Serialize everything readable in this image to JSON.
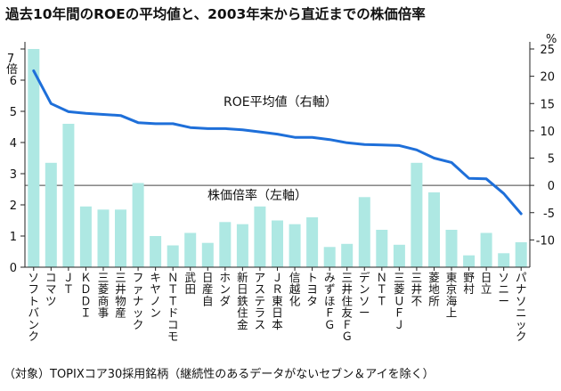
{
  "chart_data": {
    "type": "bar+line",
    "title": "過去10年間のROEの平均値と、2003年末から直近までの株価倍率",
    "left_axis": {
      "unit_label": "倍",
      "ylim": [
        0,
        7
      ],
      "ticks": [
        0,
        1,
        2,
        3,
        4,
        5,
        6,
        7
      ]
    },
    "right_axis": {
      "unit_label": "%",
      "ylim": [
        -15,
        25
      ],
      "ticks": [
        -10,
        -5,
        0,
        5,
        10,
        15,
        20,
        25
      ]
    },
    "categories": [
      "ソフトバンク",
      "コマツ",
      "ＪＴ",
      "ＫＤＤＩ",
      "三菱商事",
      "三井物産",
      "ファナック",
      "キヤノン",
      "ＮＴＴドコモ",
      "武田",
      "日産自",
      "ホンダ",
      "新日鉄住金",
      "アステラス",
      "ＪＲ東日本",
      "信越化",
      "トヨタ",
      "みずほＦＧ",
      "三井住友ＦＧ",
      "デンソー",
      "ＮＴＴ",
      "三菱ＵＦＪ",
      "三井不",
      "菱地所",
      "東京海上",
      "野村",
      "日立",
      "ソニー",
      "パナソニック"
    ],
    "series": [
      {
        "name": "株価倍率（左軸）",
        "type": "bar",
        "axis": "left",
        "color": "#aee8e3",
        "values": [
          7.0,
          3.35,
          4.6,
          1.95,
          1.85,
          1.85,
          2.7,
          1.0,
          0.7,
          1.1,
          0.78,
          1.45,
          1.38,
          1.95,
          1.5,
          1.38,
          1.6,
          0.65,
          0.75,
          2.25,
          1.2,
          0.72,
          3.35,
          2.4,
          1.2,
          0.38,
          1.1,
          0.45,
          0.8
        ]
      },
      {
        "name": "ROE平均値（右軸）",
        "type": "line",
        "axis": "right",
        "color": "#1e6fd9",
        "values": [
          21.0,
          15.0,
          13.5,
          13.2,
          13.0,
          12.8,
          11.5,
          11.3,
          11.3,
          10.6,
          10.4,
          10.4,
          10.2,
          9.8,
          9.4,
          8.8,
          8.8,
          8.4,
          7.8,
          7.5,
          7.4,
          7.3,
          6.5,
          5.0,
          4.2,
          1.3,
          1.2,
          -1.5,
          -5.2
        ]
      }
    ],
    "footnote": "（対象）TOPIXコア30採用銘柄（継続性のあるデータがないセブン＆アイを除く）"
  }
}
